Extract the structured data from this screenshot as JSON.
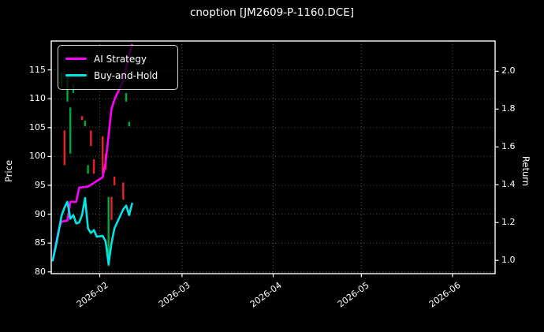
{
  "title": "cnoption [JM2609-P-1160.DCE]",
  "chart_data": {
    "type": "line+candlestick",
    "title": "cnoption [JM2609-P-1160.DCE]",
    "background": "#000000",
    "grid_color": "#555555",
    "frame_color": "#ffffff",
    "up_color": "#00aa33",
    "down_color": "#ee2222",
    "legend_position": "upper left",
    "x_axis": {
      "range": [
        "2026-01-15T12:00:00Z",
        "2026-06-15T12:00:00Z"
      ],
      "ticks": [
        {
          "label": "2026-02",
          "date": "2026-02-01T00:00:00Z"
        },
        {
          "label": "2026-03",
          "date": "2026-03-01T00:00:00Z"
        },
        {
          "label": "2026-04",
          "date": "2026-04-01T00:00:00Z"
        },
        {
          "label": "2026-05",
          "date": "2026-05-01T00:00:00Z"
        },
        {
          "label": "2026-06",
          "date": "2026-06-01T00:00:00Z"
        }
      ],
      "grid": true
    },
    "left_axis": {
      "label": "Price",
      "ticks": [
        80,
        85,
        90,
        95,
        100,
        105,
        110,
        115
      ],
      "range": [
        79.7,
        120.0
      ],
      "grid": true
    },
    "right_axis": {
      "label": "Return",
      "ticks": [
        1.0,
        1.2,
        1.4,
        1.6,
        1.8,
        2.0
      ],
      "range": [
        0.93,
        2.16
      ],
      "grid": false
    },
    "candles": [
      {
        "date": "2026-01-19",
        "dir": "up",
        "high": 114.5,
        "low": 112.0
      },
      {
        "date": "2026-01-20",
        "dir": "down",
        "high": 104.5,
        "low": 98.5
      },
      {
        "date": "2026-01-21",
        "dir": "up",
        "high": 114.0,
        "low": 109.5
      },
      {
        "date": "2026-01-22",
        "dir": "up",
        "high": 108.5,
        "low": 100.5
      },
      {
        "date": "2026-01-23",
        "dir": "up",
        "high": 112.5,
        "low": 111.0
      },
      {
        "date": "2026-01-26",
        "dir": "down",
        "high": 107.0,
        "low": 106.3
      },
      {
        "date": "2026-01-27",
        "dir": "up",
        "high": 106.2,
        "low": 105.2
      },
      {
        "date": "2026-01-28",
        "dir": "up",
        "high": 98.5,
        "low": 97.0
      },
      {
        "date": "2026-01-29",
        "dir": "down",
        "high": 104.5,
        "low": 101.8
      },
      {
        "date": "2026-01-30",
        "dir": "down",
        "high": 99.5,
        "low": 97.0
      },
      {
        "date": "2026-02-02",
        "dir": "down",
        "high": 103.5,
        "low": 97.0
      },
      {
        "date": "2026-02-03",
        "dir": "down",
        "high": 100.5,
        "low": 97.7
      },
      {
        "date": "2026-02-04",
        "dir": "up",
        "high": 93.0,
        "low": 81.0
      },
      {
        "date": "2026-02-05",
        "dir": "down",
        "high": 93.0,
        "low": 89.0
      },
      {
        "date": "2026-02-06",
        "dir": "down",
        "high": 96.5,
        "low": 95.0
      },
      {
        "date": "2026-02-09",
        "dir": "down",
        "high": 95.5,
        "low": 92.5
      },
      {
        "date": "2026-02-10",
        "dir": "up",
        "high": 111.0,
        "low": 109.5
      },
      {
        "date": "2026-02-11",
        "dir": "up",
        "high": 106.0,
        "low": 105.2
      }
    ],
    "series": [
      {
        "name": "AI Strategy",
        "axis": "right",
        "color": "#ff00ff",
        "points": [
          [
            "2026-01-16",
            1.0
          ],
          [
            "2026-01-17",
            1.08
          ],
          [
            "2026-01-18",
            1.16
          ],
          [
            "2026-01-19",
            1.205
          ],
          [
            "2026-01-21",
            1.21
          ],
          [
            "2026-01-22",
            1.31
          ],
          [
            "2026-01-24",
            1.31
          ],
          [
            "2026-01-25",
            1.385
          ],
          [
            "2026-01-28",
            1.39
          ],
          [
            "2026-01-31",
            1.42
          ],
          [
            "2026-02-02",
            1.44
          ],
          [
            "2026-02-03",
            1.52
          ],
          [
            "2026-02-04",
            1.66
          ],
          [
            "2026-02-05",
            1.8
          ],
          [
            "2026-02-06",
            1.85
          ],
          [
            "2026-02-09",
            1.95
          ],
          [
            "2026-02-10",
            2.02
          ],
          [
            "2026-02-11",
            2.09
          ],
          [
            "2026-02-12",
            2.14
          ]
        ]
      },
      {
        "name": "Buy-and-Hold",
        "axis": "right",
        "color": "#00e5e5",
        "points": [
          [
            "2026-01-16",
            1.0
          ],
          [
            "2026-01-17",
            1.07
          ],
          [
            "2026-01-18",
            1.15
          ],
          [
            "2026-01-19",
            1.235
          ],
          [
            "2026-01-20",
            1.28
          ],
          [
            "2026-01-21",
            1.31
          ],
          [
            "2026-01-22",
            1.22
          ],
          [
            "2026-01-23",
            1.24
          ],
          [
            "2026-01-24",
            1.195
          ],
          [
            "2026-01-25",
            1.2
          ],
          [
            "2026-01-26",
            1.24
          ],
          [
            "2026-01-27",
            1.33
          ],
          [
            "2026-01-28",
            1.17
          ],
          [
            "2026-01-29",
            1.145
          ],
          [
            "2026-01-30",
            1.16
          ],
          [
            "2026-01-31",
            1.125
          ],
          [
            "2026-02-02",
            1.13
          ],
          [
            "2026-02-03",
            1.1
          ],
          [
            "2026-02-04",
            0.98
          ],
          [
            "2026-02-05",
            1.09
          ],
          [
            "2026-02-06",
            1.17
          ],
          [
            "2026-02-09",
            1.27
          ],
          [
            "2026-02-10",
            1.29
          ],
          [
            "2026-02-11",
            1.24
          ],
          [
            "2026-02-12",
            1.3
          ]
        ]
      }
    ]
  }
}
